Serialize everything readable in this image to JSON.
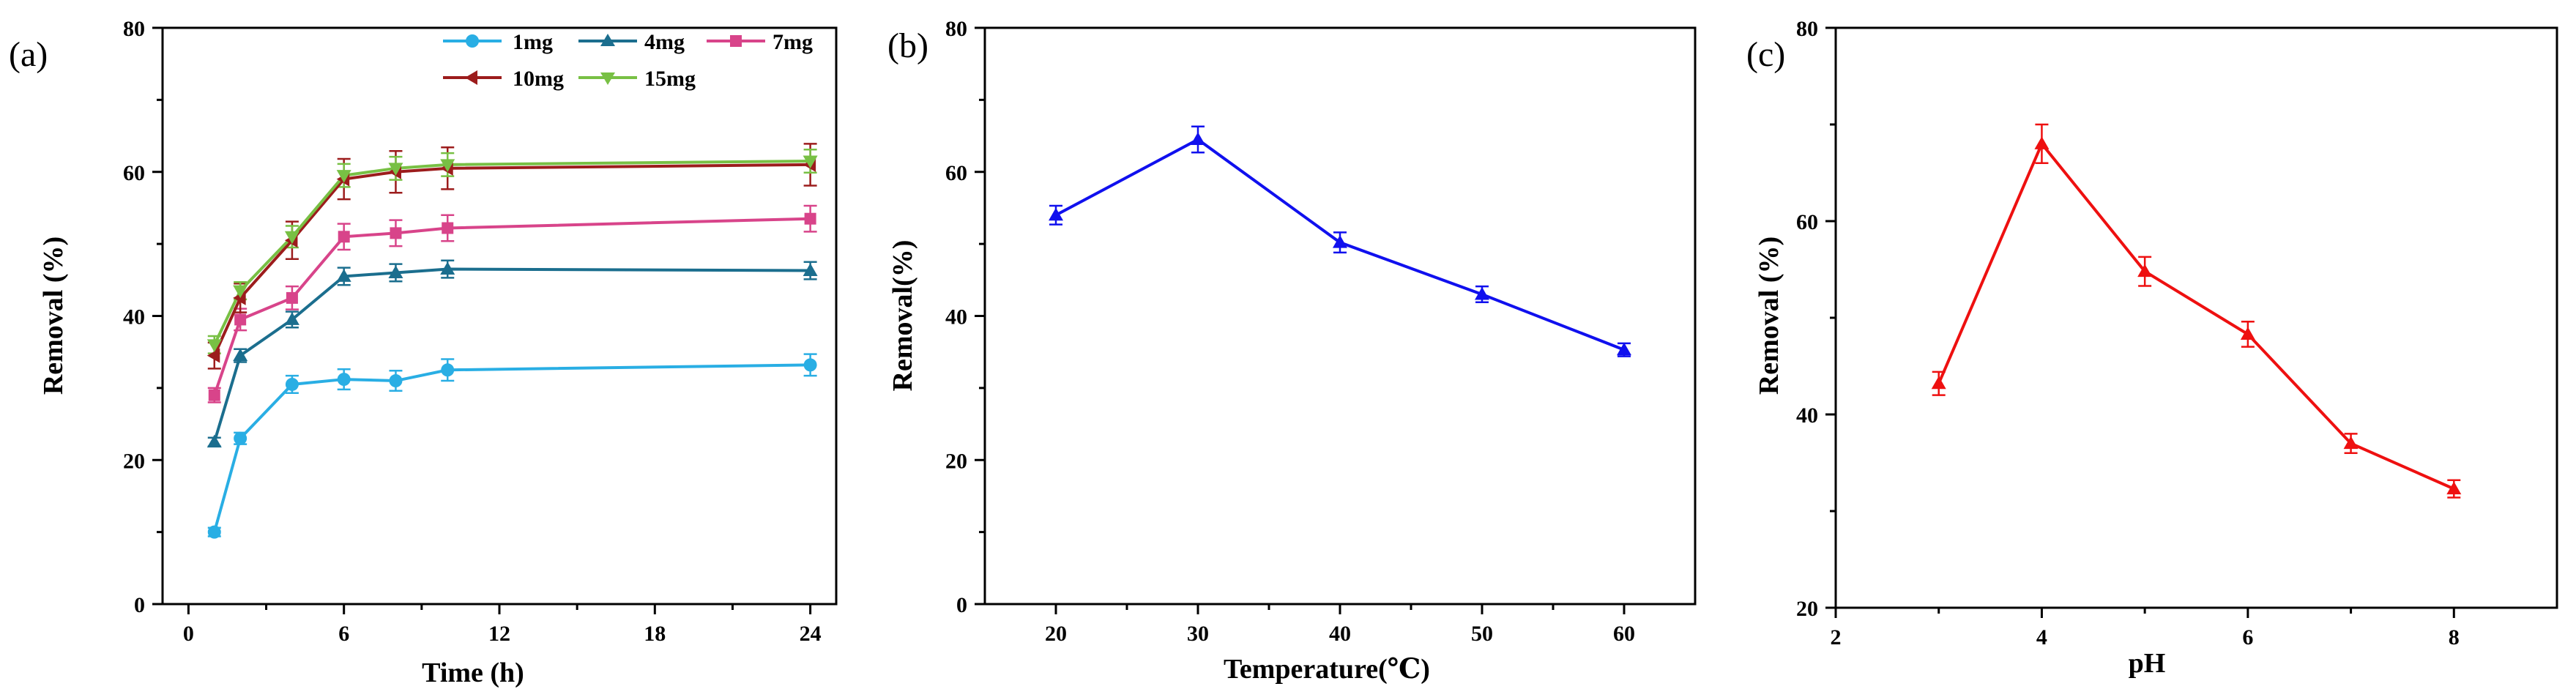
{
  "colors": {
    "s1mg": "#29aee4",
    "s4mg": "#1b6e8e",
    "s7mg": "#d8448a",
    "s10mg": "#9c1c1c",
    "s15mg": "#78c044",
    "temperature": "#1010ee",
    "ph": "#ee1010"
  },
  "chart_data": [
    {
      "type": "line",
      "panel_label": "(a)",
      "xlabel": "Time (h)",
      "ylabel": "Removal (%)",
      "xlim": [
        -1,
        25
      ],
      "ylim": [
        0,
        80
      ],
      "xticks": [
        "0",
        "6",
        "12",
        "18",
        "24"
      ],
      "yticks": [
        "0",
        "20",
        "40",
        "60",
        "80"
      ],
      "legend_position": "top-right",
      "x": [
        1,
        2,
        4,
        6,
        8,
        10,
        24
      ],
      "series": [
        {
          "name": "1mg",
          "marker": "circle",
          "values": [
            10,
            23,
            30.5,
            31.2,
            31,
            32.5,
            33.2
          ],
          "errors": [
            0.6,
            0.8,
            1.2,
            1.4,
            1.4,
            1.5,
            1.5
          ]
        },
        {
          "name": "4mg",
          "marker": "triangle-up",
          "values": [
            22.5,
            34.5,
            39.5,
            45.5,
            46,
            46.5,
            46.3
          ],
          "errors": [
            0.6,
            0.9,
            1.1,
            1.2,
            1.2,
            1.2,
            1.2
          ]
        },
        {
          "name": "7mg",
          "marker": "square",
          "values": [
            29,
            39.5,
            42.5,
            51,
            51.5,
            52.2,
            53.5
          ],
          "errors": [
            1.0,
            1.5,
            1.6,
            1.8,
            1.8,
            1.8,
            1.8
          ]
        },
        {
          "name": "10mg",
          "marker": "triangle-left",
          "values": [
            34.5,
            42.5,
            50.5,
            59,
            60,
            60.5,
            61
          ],
          "errors": [
            1.8,
            2.0,
            2.6,
            2.8,
            2.9,
            2.9,
            2.9
          ]
        },
        {
          "name": "15mg",
          "marker": "triangle-down",
          "values": [
            36,
            43.5,
            51,
            59.5,
            60.5,
            61,
            61.5
          ],
          "errors": [
            1.2,
            1.2,
            1.5,
            1.6,
            1.6,
            1.6,
            1.6
          ]
        }
      ]
    },
    {
      "type": "line",
      "panel_label": "(b)",
      "xlabel": "Temperature(℃)",
      "ylabel": "Removal(%)",
      "xlim": [
        15,
        65
      ],
      "ylim": [
        0,
        80
      ],
      "xticks": [
        "20",
        "30",
        "40",
        "50",
        "60"
      ],
      "yticks": [
        "0",
        "20",
        "40",
        "60",
        "80"
      ],
      "x": [
        20,
        30,
        40,
        50,
        60
      ],
      "series": [
        {
          "name": "Removal",
          "marker": "triangle-up",
          "values": [
            54,
            64.5,
            50.2,
            43,
            35.3
          ],
          "errors": [
            1.3,
            1.8,
            1.4,
            1.1,
            0.9
          ]
        }
      ]
    },
    {
      "type": "line",
      "panel_label": "(c)",
      "xlabel": "pH",
      "ylabel": "Removal (%)",
      "xlim": [
        2,
        9
      ],
      "ylim": [
        20,
        80
      ],
      "xticks": [
        "2",
        "4",
        "6",
        "8"
      ],
      "yticks": [
        "20",
        "40",
        "60",
        "80"
      ],
      "x": [
        3,
        4,
        5,
        6,
        7,
        8
      ],
      "series": [
        {
          "name": "Removal",
          "marker": "triangle-up",
          "values": [
            43.2,
            68,
            54.8,
            48.3,
            37,
            32.3
          ],
          "errors": [
            1.2,
            2.0,
            1.5,
            1.3,
            1.0,
            0.9
          ]
        }
      ]
    }
  ]
}
